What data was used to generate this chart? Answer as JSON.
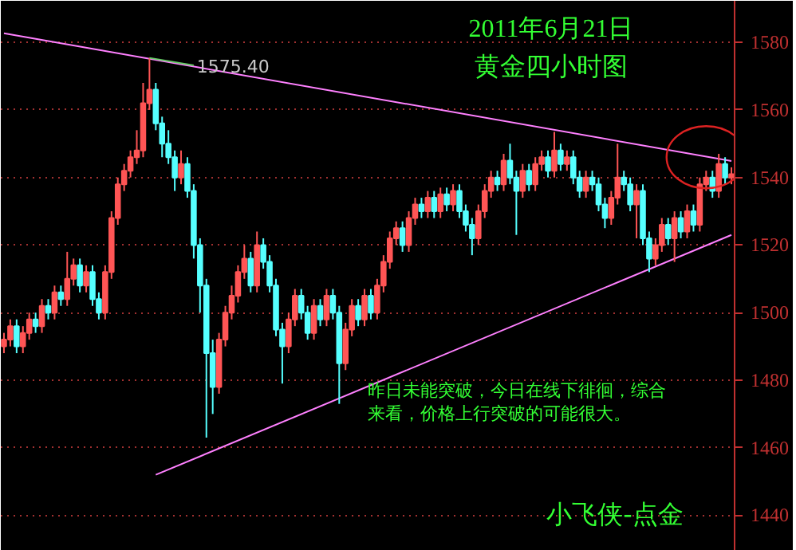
{
  "chart_data": {
    "type": "candlestick",
    "title": "2011年6月21日",
    "subtitle": "黄金四小时图",
    "categories": [
      null,
      null,
      null,
      null,
      null,
      null,
      null,
      null,
      null,
      null,
      null,
      null,
      null,
      null,
      null,
      null,
      null,
      null,
      null,
      null,
      null,
      null,
      null,
      null,
      null,
      null,
      null,
      null,
      null,
      null,
      null,
      null,
      null,
      null,
      null,
      null,
      null,
      null,
      null,
      null,
      null,
      null,
      null,
      null,
      null,
      null,
      null,
      null,
      null,
      null,
      null,
      null,
      null,
      null,
      null,
      null,
      null,
      null,
      null,
      null,
      null,
      null,
      null,
      null,
      null,
      null,
      null,
      null,
      null,
      null,
      null,
      null,
      null,
      null,
      null,
      null,
      null,
      null,
      null,
      null,
      null,
      null,
      null,
      null,
      null,
      null,
      null,
      null,
      null,
      null,
      null,
      null,
      null,
      null,
      null,
      null,
      null,
      null,
      null,
      null,
      null,
      null,
      null,
      null,
      null,
      null,
      null,
      null,
      null,
      null,
      null,
      null,
      null,
      null,
      null,
      null
    ],
    "ohlc": [
      [
        1490,
        1494,
        1488,
        1492
      ],
      [
        1492,
        1498,
        1490,
        1496
      ],
      [
        1496,
        1498,
        1488,
        1490
      ],
      [
        1490,
        1496,
        1488,
        1494
      ],
      [
        1494,
        1500,
        1492,
        1498
      ],
      [
        1498,
        1500,
        1494,
        1496
      ],
      [
        1496,
        1504,
        1494,
        1502
      ],
      [
        1502,
        1504,
        1498,
        1500
      ],
      [
        1500,
        1508,
        1498,
        1506
      ],
      [
        1506,
        1508,
        1502,
        1504
      ],
      [
        1504,
        1518,
        1502,
        1510
      ],
      [
        1510,
        1516,
        1508,
        1514
      ],
      [
        1514,
        1516,
        1506,
        1508
      ],
      [
        1508,
        1514,
        1506,
        1512
      ],
      [
        1512,
        1514,
        1502,
        1504
      ],
      [
        1504,
        1506,
        1498,
        1500
      ],
      [
        1500,
        1514,
        1498,
        1512
      ],
      [
        1512,
        1530,
        1510,
        1528
      ],
      [
        1528,
        1540,
        1526,
        1538
      ],
      [
        1538,
        1544,
        1536,
        1542
      ],
      [
        1542,
        1548,
        1540,
        1546
      ],
      [
        1546,
        1554,
        1544,
        1548
      ],
      [
        1548,
        1568,
        1546,
        1562
      ],
      [
        1562,
        1575.4,
        1560,
        1566
      ],
      [
        1566,
        1568,
        1554,
        1556
      ],
      [
        1556,
        1558,
        1546,
        1550
      ],
      [
        1550,
        1554,
        1544,
        1546
      ],
      [
        1546,
        1548,
        1536,
        1540
      ],
      [
        1540,
        1548,
        1538,
        1544
      ],
      [
        1544,
        1546,
        1534,
        1536
      ],
      [
        1536,
        1538,
        1516,
        1520
      ],
      [
        1520,
        1522,
        1500,
        1508
      ],
      [
        1508,
        1510,
        1463,
        1488
      ],
      [
        1488,
        1492,
        1470,
        1478
      ],
      [
        1478,
        1494,
        1476,
        1492
      ],
      [
        1492,
        1502,
        1490,
        1500
      ],
      [
        1500,
        1508,
        1498,
        1505
      ],
      [
        1505,
        1514,
        1503,
        1512
      ],
      [
        1512,
        1520,
        1510,
        1516
      ],
      [
        1516,
        1518,
        1506,
        1508
      ],
      [
        1508,
        1524,
        1506,
        1520
      ],
      [
        1520,
        1522,
        1513,
        1515
      ],
      [
        1515,
        1517,
        1506,
        1508
      ],
      [
        1508,
        1510,
        1493,
        1495
      ],
      [
        1495,
        1497,
        1479,
        1490
      ],
      [
        1490,
        1500,
        1488,
        1498
      ],
      [
        1498,
        1507,
        1496,
        1505
      ],
      [
        1505,
        1507,
        1498,
        1500
      ],
      [
        1500,
        1502,
        1492,
        1494
      ],
      [
        1494,
        1504,
        1492,
        1502
      ],
      [
        1502,
        1504,
        1496,
        1498
      ],
      [
        1498,
        1507,
        1496,
        1505
      ],
      [
        1505,
        1507,
        1498,
        1500
      ],
      [
        1500,
        1502,
        1473,
        1485
      ],
      [
        1485,
        1497,
        1483,
        1495
      ],
      [
        1495,
        1504,
        1493,
        1502
      ],
      [
        1502,
        1504,
        1496,
        1498
      ],
      [
        1498,
        1507,
        1496,
        1505
      ],
      [
        1505,
        1507,
        1498,
        1500
      ],
      [
        1500,
        1510,
        1498,
        1508
      ],
      [
        1508,
        1517,
        1506,
        1515
      ],
      [
        1515,
        1524,
        1513,
        1522
      ],
      [
        1522,
        1527,
        1520,
        1525
      ],
      [
        1525,
        1527,
        1518,
        1520
      ],
      [
        1520,
        1530,
        1518,
        1528
      ],
      [
        1528,
        1534,
        1526,
        1532
      ],
      [
        1532,
        1534,
        1528,
        1530
      ],
      [
        1530,
        1536,
        1528,
        1534
      ],
      [
        1534,
        1536,
        1528,
        1530
      ],
      [
        1530,
        1537,
        1528,
        1535
      ],
      [
        1535,
        1537,
        1530,
        1532
      ],
      [
        1532,
        1538,
        1530,
        1536
      ],
      [
        1536,
        1538,
        1528,
        1530
      ],
      [
        1530,
        1532,
        1524,
        1526
      ],
      [
        1526,
        1528,
        1517,
        1522
      ],
      [
        1522,
        1532,
        1520,
        1530
      ],
      [
        1530,
        1538,
        1528,
        1536
      ],
      [
        1536,
        1542,
        1534,
        1540
      ],
      [
        1540,
        1542,
        1536,
        1538
      ],
      [
        1538,
        1547,
        1536,
        1545
      ],
      [
        1545,
        1550,
        1538,
        1540
      ],
      [
        1540,
        1542,
        1523,
        1536
      ],
      [
        1536,
        1544,
        1534,
        1542
      ],
      [
        1542,
        1544,
        1536,
        1538
      ],
      [
        1538,
        1546,
        1536,
        1544
      ],
      [
        1544,
        1548,
        1542,
        1546
      ],
      [
        1546,
        1548,
        1540,
        1542
      ],
      [
        1542,
        1553.5,
        1540,
        1548
      ],
      [
        1548,
        1550,
        1542,
        1544
      ],
      [
        1544,
        1548,
        1542,
        1546
      ],
      [
        1546,
        1548,
        1538,
        1540
      ],
      [
        1540,
        1542,
        1534,
        1536
      ],
      [
        1536,
        1542,
        1534,
        1540
      ],
      [
        1540,
        1542,
        1536,
        1538
      ],
      [
        1538,
        1540,
        1530,
        1532
      ],
      [
        1532,
        1534,
        1525,
        1528
      ],
      [
        1528,
        1536,
        1526,
        1534
      ],
      [
        1534,
        1550,
        1532,
        1540
      ],
      [
        1540,
        1542,
        1536,
        1538
      ],
      [
        1538,
        1540,
        1530,
        1532
      ],
      [
        1532,
        1538,
        1522,
        1536
      ],
      [
        1536,
        1538,
        1520,
        1522
      ],
      [
        1522,
        1524,
        1512,
        1516
      ],
      [
        1516,
        1522,
        1514,
        1520
      ],
      [
        1520,
        1528,
        1518,
        1526
      ],
      [
        1526,
        1528,
        1520,
        1522
      ],
      [
        1522,
        1530,
        1515,
        1528
      ],
      [
        1528,
        1530,
        1522,
        1524
      ],
      [
        1524,
        1532,
        1522,
        1530
      ],
      [
        1530,
        1532,
        1524,
        1526
      ],
      [
        1526,
        1540,
        1524,
        1538
      ],
      [
        1538,
        1542,
        1536,
        1540
      ],
      [
        1540,
        1542,
        1534,
        1536
      ],
      [
        1536,
        1547,
        1534,
        1544
      ],
      [
        1544,
        1546,
        1538,
        1540
      ],
      [
        1540,
        1543,
        1538,
        1541
      ]
    ],
    "colors": [
      "#ff5555",
      "#ff5555",
      "#55ffff",
      "#ff5555",
      "#ff5555",
      "#55ffff",
      "#ff5555",
      "#55ffff",
      "#ff5555",
      "#55ffff",
      "#ff5555",
      "#ff5555",
      "#55ffff",
      "#ff5555",
      "#55ffff",
      "#55ffff",
      "#ff5555",
      "#ff5555",
      "#ff5555",
      "#ff5555",
      "#ff5555",
      "#ff5555",
      "#ff5555",
      "#ff5555",
      "#55ffff",
      "#55ffff",
      "#55ffff",
      "#55ffff",
      "#ff5555",
      "#55ffff",
      "#55ffff",
      "#55ffff",
      "#55ffff",
      "#55ffff",
      "#ff5555",
      "#ff5555",
      "#ff5555",
      "#ff5555",
      "#ff5555",
      "#55ffff",
      "#ff5555",
      "#55ffff",
      "#55ffff",
      "#55ffff",
      "#55ffff",
      "#ff5555",
      "#ff5555",
      "#55ffff",
      "#55ffff",
      "#ff5555",
      "#55ffff",
      "#ff5555",
      "#55ffff",
      "#55ffff",
      "#ff5555",
      "#ff5555",
      "#55ffff",
      "#ff5555",
      "#55ffff",
      "#ff5555",
      "#ff5555",
      "#ff5555",
      "#ff5555",
      "#55ffff",
      "#ff5555",
      "#ff5555",
      "#55ffff",
      "#ff5555",
      "#55ffff",
      "#ff5555",
      "#55ffff",
      "#ff5555",
      "#55ffff",
      "#55ffff",
      "#55ffff",
      "#ff5555",
      "#ff5555",
      "#ff5555",
      "#55ffff",
      "#ff5555",
      "#55ffff",
      "#55ffff",
      "#ff5555",
      "#55ffff",
      "#ff5555",
      "#ff5555",
      "#55ffff",
      "#ff5555",
      "#55ffff",
      "#ff5555",
      "#55ffff",
      "#55ffff",
      "#ff5555",
      "#55ffff",
      "#55ffff",
      "#55ffff",
      "#ff5555",
      "#ff5555",
      "#55ffff",
      "#55ffff",
      "#ff5555",
      "#55ffff",
      "#55ffff",
      "#ff5555",
      "#ff5555",
      "#55ffff",
      "#ff5555",
      "#55ffff",
      "#ff5555",
      "#55ffff",
      "#ff5555",
      "#ff5555",
      "#55ffff",
      "#ff5555",
      "#55ffff",
      "#ff5555"
    ],
    "series": [
      {
        "type": "line",
        "values": [
          1582.7,
          null,
          null,
          null,
          null,
          null,
          null,
          null,
          null,
          null,
          null,
          null,
          null,
          null,
          null,
          null,
          null,
          null,
          null,
          null,
          null,
          null,
          null,
          null,
          null,
          null,
          null,
          null,
          null,
          null,
          null,
          null,
          null,
          null,
          null,
          null,
          null,
          null,
          null,
          null,
          null,
          null,
          null,
          null,
          null,
          null,
          null,
          null,
          null,
          null,
          null,
          null,
          null,
          null,
          null,
          null,
          null,
          null,
          null,
          null,
          null,
          null,
          null,
          null,
          null,
          null,
          null,
          null,
          null,
          null,
          null,
          null,
          null,
          null,
          null,
          null,
          null,
          null,
          null,
          null,
          null,
          null,
          null,
          null,
          null,
          null,
          null,
          null,
          null,
          null,
          null,
          null,
          null,
          null,
          null,
          null,
          null,
          null,
          null,
          null,
          null,
          null,
          null,
          null,
          null,
          null,
          null,
          null,
          null,
          null,
          null,
          null,
          null,
          null,
          null,
          1544.9
        ],
        "color": "#ff80ff"
      },
      {
        "type": "line",
        "values": [
          null,
          null,
          null,
          null,
          null,
          null,
          null,
          null,
          null,
          null,
          null,
          null,
          null,
          null,
          null,
          null,
          null,
          null,
          null,
          null,
          null,
          null,
          null,
          null,
          1452,
          null,
          null,
          null,
          null,
          null,
          null,
          null,
          null,
          null,
          null,
          null,
          null,
          null,
          null,
          null,
          null,
          null,
          null,
          null,
          null,
          null,
          null,
          null,
          null,
          null,
          null,
          null,
          null,
          null,
          null,
          null,
          null,
          null,
          null,
          null,
          null,
          null,
          null,
          null,
          null,
          null,
          null,
          null,
          null,
          null,
          null,
          null,
          null,
          null,
          null,
          null,
          null,
          null,
          null,
          null,
          null,
          null,
          null,
          null,
          null,
          null,
          null,
          null,
          null,
          null,
          null,
          null,
          null,
          null,
          null,
          null,
          null,
          null,
          null,
          null,
          null,
          null,
          null,
          null,
          null,
          null,
          null,
          null,
          null,
          null,
          null,
          null,
          null,
          null,
          null,
          1523
        ],
        "color": "#ff80ff"
      }
    ],
    "ylim": [
      1429.5,
      1592.3
    ],
    "yticks": [
      1440,
      1460,
      1480,
      1500,
      1520,
      1540,
      1560,
      1580
    ],
    "tick_labels": "y",
    "grid": "y",
    "annotations": [
      "1575.40",
      "昨日未能突破，今日在线下徘徊，综合来看，价格上行突破的可能很大。",
      "小飞侠-点金"
    ]
  }
}
